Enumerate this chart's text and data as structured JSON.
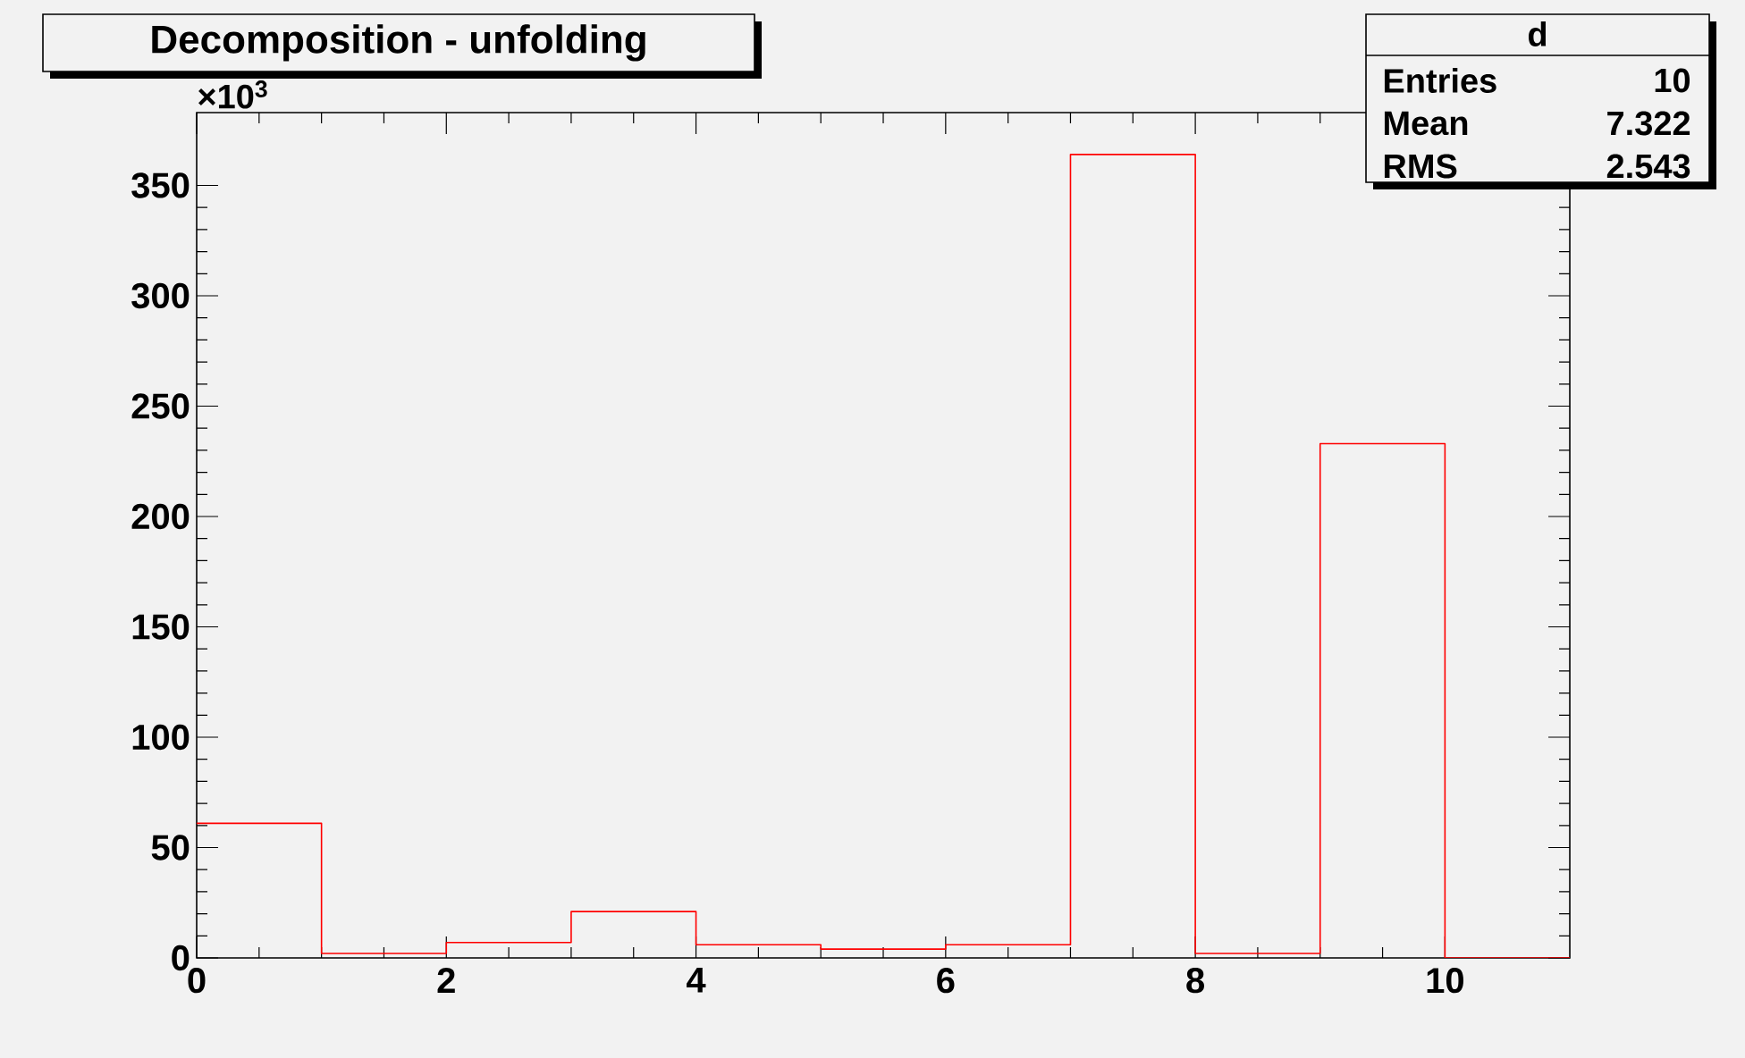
{
  "chart_data": {
    "type": "histogram",
    "title": "Decomposition - unfolding",
    "bins": [
      0,
      1,
      2,
      3,
      4,
      5,
      6,
      7,
      8,
      9,
      10,
      11
    ],
    "values": [
      61,
      2,
      7,
      21,
      6,
      4,
      6,
      364,
      2,
      233,
      0
    ],
    "color": "#ff0000",
    "xlim": [
      0,
      11
    ],
    "ylim": [
      0,
      383
    ],
    "xticks": [
      0,
      2,
      4,
      6,
      8,
      10
    ],
    "yticks": [
      0,
      50,
      100,
      150,
      200,
      250,
      300,
      350
    ],
    "annotations": [
      "×10$^{3}$",
      "d",
      "Entries",
      "10",
      "Mean",
      "7.322",
      "RMS",
      "2.543"
    ],
    "grid": false
  }
}
